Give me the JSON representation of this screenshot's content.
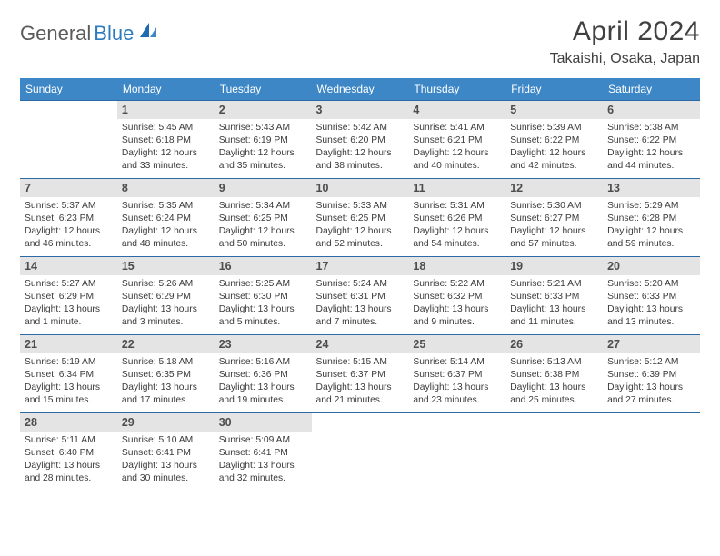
{
  "logo": {
    "text1": "General",
    "text2": "Blue"
  },
  "title": "April 2024",
  "location": "Takaishi, Osaka, Japan",
  "day_headers": [
    "Sunday",
    "Monday",
    "Tuesday",
    "Wednesday",
    "Thursday",
    "Friday",
    "Saturday"
  ],
  "colors": {
    "header_bg": "#3d87c7",
    "header_text": "#ffffff",
    "rule": "#2d6aa3",
    "daynum_bg": "#e4e4e4",
    "body_text": "#3a3a3a",
    "logo_gray": "#5a5a5a",
    "logo_blue": "#2b7bbf"
  },
  "weeks": [
    [
      {
        "n": "",
        "sr": "",
        "ss": "",
        "dl": ""
      },
      {
        "n": "1",
        "sr": "Sunrise: 5:45 AM",
        "ss": "Sunset: 6:18 PM",
        "dl": "Daylight: 12 hours and 33 minutes."
      },
      {
        "n": "2",
        "sr": "Sunrise: 5:43 AM",
        "ss": "Sunset: 6:19 PM",
        "dl": "Daylight: 12 hours and 35 minutes."
      },
      {
        "n": "3",
        "sr": "Sunrise: 5:42 AM",
        "ss": "Sunset: 6:20 PM",
        "dl": "Daylight: 12 hours and 38 minutes."
      },
      {
        "n": "4",
        "sr": "Sunrise: 5:41 AM",
        "ss": "Sunset: 6:21 PM",
        "dl": "Daylight: 12 hours and 40 minutes."
      },
      {
        "n": "5",
        "sr": "Sunrise: 5:39 AM",
        "ss": "Sunset: 6:22 PM",
        "dl": "Daylight: 12 hours and 42 minutes."
      },
      {
        "n": "6",
        "sr": "Sunrise: 5:38 AM",
        "ss": "Sunset: 6:22 PM",
        "dl": "Daylight: 12 hours and 44 minutes."
      }
    ],
    [
      {
        "n": "7",
        "sr": "Sunrise: 5:37 AM",
        "ss": "Sunset: 6:23 PM",
        "dl": "Daylight: 12 hours and 46 minutes."
      },
      {
        "n": "8",
        "sr": "Sunrise: 5:35 AM",
        "ss": "Sunset: 6:24 PM",
        "dl": "Daylight: 12 hours and 48 minutes."
      },
      {
        "n": "9",
        "sr": "Sunrise: 5:34 AM",
        "ss": "Sunset: 6:25 PM",
        "dl": "Daylight: 12 hours and 50 minutes."
      },
      {
        "n": "10",
        "sr": "Sunrise: 5:33 AM",
        "ss": "Sunset: 6:25 PM",
        "dl": "Daylight: 12 hours and 52 minutes."
      },
      {
        "n": "11",
        "sr": "Sunrise: 5:31 AM",
        "ss": "Sunset: 6:26 PM",
        "dl": "Daylight: 12 hours and 54 minutes."
      },
      {
        "n": "12",
        "sr": "Sunrise: 5:30 AM",
        "ss": "Sunset: 6:27 PM",
        "dl": "Daylight: 12 hours and 57 minutes."
      },
      {
        "n": "13",
        "sr": "Sunrise: 5:29 AM",
        "ss": "Sunset: 6:28 PM",
        "dl": "Daylight: 12 hours and 59 minutes."
      }
    ],
    [
      {
        "n": "14",
        "sr": "Sunrise: 5:27 AM",
        "ss": "Sunset: 6:29 PM",
        "dl": "Daylight: 13 hours and 1 minute."
      },
      {
        "n": "15",
        "sr": "Sunrise: 5:26 AM",
        "ss": "Sunset: 6:29 PM",
        "dl": "Daylight: 13 hours and 3 minutes."
      },
      {
        "n": "16",
        "sr": "Sunrise: 5:25 AM",
        "ss": "Sunset: 6:30 PM",
        "dl": "Daylight: 13 hours and 5 minutes."
      },
      {
        "n": "17",
        "sr": "Sunrise: 5:24 AM",
        "ss": "Sunset: 6:31 PM",
        "dl": "Daylight: 13 hours and 7 minutes."
      },
      {
        "n": "18",
        "sr": "Sunrise: 5:22 AM",
        "ss": "Sunset: 6:32 PM",
        "dl": "Daylight: 13 hours and 9 minutes."
      },
      {
        "n": "19",
        "sr": "Sunrise: 5:21 AM",
        "ss": "Sunset: 6:33 PM",
        "dl": "Daylight: 13 hours and 11 minutes."
      },
      {
        "n": "20",
        "sr": "Sunrise: 5:20 AM",
        "ss": "Sunset: 6:33 PM",
        "dl": "Daylight: 13 hours and 13 minutes."
      }
    ],
    [
      {
        "n": "21",
        "sr": "Sunrise: 5:19 AM",
        "ss": "Sunset: 6:34 PM",
        "dl": "Daylight: 13 hours and 15 minutes."
      },
      {
        "n": "22",
        "sr": "Sunrise: 5:18 AM",
        "ss": "Sunset: 6:35 PM",
        "dl": "Daylight: 13 hours and 17 minutes."
      },
      {
        "n": "23",
        "sr": "Sunrise: 5:16 AM",
        "ss": "Sunset: 6:36 PM",
        "dl": "Daylight: 13 hours and 19 minutes."
      },
      {
        "n": "24",
        "sr": "Sunrise: 5:15 AM",
        "ss": "Sunset: 6:37 PM",
        "dl": "Daylight: 13 hours and 21 minutes."
      },
      {
        "n": "25",
        "sr": "Sunrise: 5:14 AM",
        "ss": "Sunset: 6:37 PM",
        "dl": "Daylight: 13 hours and 23 minutes."
      },
      {
        "n": "26",
        "sr": "Sunrise: 5:13 AM",
        "ss": "Sunset: 6:38 PM",
        "dl": "Daylight: 13 hours and 25 minutes."
      },
      {
        "n": "27",
        "sr": "Sunrise: 5:12 AM",
        "ss": "Sunset: 6:39 PM",
        "dl": "Daylight: 13 hours and 27 minutes."
      }
    ],
    [
      {
        "n": "28",
        "sr": "Sunrise: 5:11 AM",
        "ss": "Sunset: 6:40 PM",
        "dl": "Daylight: 13 hours and 28 minutes."
      },
      {
        "n": "29",
        "sr": "Sunrise: 5:10 AM",
        "ss": "Sunset: 6:41 PM",
        "dl": "Daylight: 13 hours and 30 minutes."
      },
      {
        "n": "30",
        "sr": "Sunrise: 5:09 AM",
        "ss": "Sunset: 6:41 PM",
        "dl": "Daylight: 13 hours and 32 minutes."
      },
      {
        "n": "",
        "sr": "",
        "ss": "",
        "dl": ""
      },
      {
        "n": "",
        "sr": "",
        "ss": "",
        "dl": ""
      },
      {
        "n": "",
        "sr": "",
        "ss": "",
        "dl": ""
      },
      {
        "n": "",
        "sr": "",
        "ss": "",
        "dl": ""
      }
    ]
  ]
}
